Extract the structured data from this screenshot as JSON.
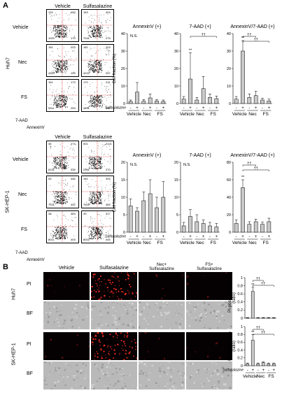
{
  "panelA": {
    "letter": "A",
    "col_headers": [
      "Vehicle",
      "Sulfasalazine"
    ],
    "row_headers": [
      "Vehicle",
      "Nec",
      "FS"
    ],
    "cell_lines": [
      "Huh7",
      "SK-HEP-1"
    ],
    "flow_axis_y": "7-AAD",
    "flow_axis_x": "AnnexinV",
    "huh7_quadrants": [
      [
        [
          "132",
          "400",
          "1020",
          "179"
        ],
        [
          "183",
          "404",
          "7041",
          "275"
        ]
      ],
      [
        [
          "181",
          "203",
          "4320",
          "199"
        ],
        [
          "181",
          "203",
          "4222",
          "257"
        ]
      ],
      [
        [
          "151",
          "173",
          "5311",
          "253"
        ],
        [
          "170",
          "211",
          "4891",
          "242"
        ]
      ]
    ],
    "sk_quadrants": [
      [
        [
          "36",
          "274",
          "8141",
          "335"
        ],
        [
          "501",
          "2121",
          "2961",
          "270"
        ]
      ],
      [
        [
          "53",
          "400",
          "7931",
          "402"
        ],
        [
          "181",
          "393",
          "7602",
          "369"
        ]
      ],
      [
        [
          "28",
          "483",
          "8011",
          "403"
        ],
        [
          "49",
          "317",
          "8002",
          "445"
        ]
      ]
    ]
  },
  "panelB": {
    "letter": "B",
    "col_headers": [
      "Vehicle",
      "Sulfasalazine",
      "Nec+\nSulfasalazine",
      "FS+\nSulfasalazine"
    ],
    "row_headers": [
      "PI",
      "BF",
      "PI",
      "BF"
    ],
    "cell_lines": [
      "Huh7",
      "SK-HEP-1"
    ]
  },
  "chart_data": [
    {
      "type": "bar",
      "panel": "A",
      "cell_line": "Huh7",
      "title": "AnnexinV (+)",
      "ylabel": "Cell fraction (%)",
      "ylim": [
        0,
        40
      ],
      "yticks": [
        0,
        10,
        20,
        30,
        40
      ],
      "values": [
        1.2,
        6.5,
        1.3,
        3.2,
        1.5,
        1.2
      ],
      "errors": [
        0.8,
        5.5,
        1.0,
        2.2,
        0.8,
        0.8
      ],
      "annotations": [
        {
          "text": "N.S."
        }
      ],
      "sulfasalazine": [
        "-",
        "+",
        "-",
        "+",
        "-",
        "+"
      ],
      "groups": [
        "Vehicle",
        "Nec",
        "FS"
      ],
      "sulfasalazine_label": "Sulfasalazine"
    },
    {
      "type": "bar",
      "panel": "A",
      "cell_line": "Huh7",
      "title": "7-AAD (+)",
      "ylim": [
        0,
        40
      ],
      "yticks": [
        0,
        10,
        20,
        30,
        40
      ],
      "values": [
        2.5,
        14.0,
        2.0,
        8.5,
        3.5,
        2.8
      ],
      "errors": [
        1.5,
        15.0,
        1.5,
        7.0,
        2.0,
        1.5
      ],
      "annotations": [
        {
          "text": "**"
        },
        {
          "text": "††"
        }
      ],
      "sulfasalazine": [
        "-",
        "+",
        "-",
        "+",
        "-",
        "+"
      ],
      "groups": [
        "Vehicle",
        "Nec",
        "FS"
      ]
    },
    {
      "type": "bar",
      "panel": "A",
      "cell_line": "Huh7",
      "title": "AnnexinV/7-AAD (+)",
      "ylim": [
        0,
        40
      ],
      "yticks": [
        0,
        10,
        20,
        30,
        40
      ],
      "values": [
        2.5,
        30.0,
        3.5,
        4.5,
        2.0,
        1.5
      ],
      "errors": [
        1.5,
        6.0,
        2.0,
        2.5,
        1.0,
        1.0
      ],
      "annotations": [
        {
          "text": "**"
        },
        {
          "text": "††"
        },
        {
          "text": "††"
        }
      ],
      "sulfasalazine": [
        "-",
        "+",
        "-",
        "+",
        "-",
        "+"
      ],
      "groups": [
        "Vehicle",
        "Nec",
        "FS"
      ]
    },
    {
      "type": "bar",
      "panel": "A",
      "cell_line": "SK-HEP-1",
      "title": "AnnexinV (+)",
      "ylabel": "Cell fraction (%)",
      "ylim": [
        0,
        20
      ],
      "yticks": [
        0,
        5,
        10,
        15,
        20
      ],
      "values": [
        7.5,
        6.0,
        9.0,
        11.0,
        7.0,
        10.0
      ],
      "errors": [
        2.0,
        1.0,
        2.5,
        4.0,
        3.0,
        4.5
      ],
      "annotations": [
        {
          "text": "N.S."
        }
      ],
      "sulfasalazine": [
        "-",
        "+",
        "-",
        "+",
        "-",
        "+"
      ],
      "groups": [
        "Vehicle",
        "Nec",
        "FS"
      ],
      "sulfasalazine_label": "Sulfasalazine"
    },
    {
      "type": "bar",
      "panel": "A",
      "cell_line": "SK-HEP-1",
      "title": "7-AAD (+)",
      "ylim": [
        0,
        20
      ],
      "yticks": [
        0,
        5,
        10,
        15,
        20
      ],
      "values": [
        1.8,
        4.5,
        3.0,
        2.5,
        1.8,
        1.5
      ],
      "errors": [
        1.0,
        2.0,
        2.0,
        1.0,
        1.0,
        1.0
      ],
      "annotations": [
        {
          "text": "N.S."
        }
      ],
      "sulfasalazine": [
        "-",
        "+",
        "-",
        "+",
        "-",
        "+"
      ],
      "groups": [
        "Vehicle",
        "Nec",
        "FS"
      ]
    },
    {
      "type": "bar",
      "panel": "A",
      "cell_line": "SK-HEP-1",
      "title": "AnnexinV/7-AAD (+)",
      "ylim": [
        0,
        80
      ],
      "yticks": [
        0,
        20,
        40,
        60,
        80
      ],
      "values": [
        10.0,
        51.0,
        9.0,
        12.0,
        9.0,
        12.0
      ],
      "errors": [
        4.0,
        9.0,
        3.0,
        3.0,
        2.5,
        4.0
      ],
      "annotations": [
        {
          "text": "**"
        },
        {
          "text": "††"
        },
        {
          "text": "††"
        }
      ],
      "sulfasalazine": [
        "-",
        "+",
        "-",
        "+",
        "-",
        "+"
      ],
      "groups": [
        "Vehicle",
        "Nec",
        "FS"
      ]
    },
    {
      "type": "bar",
      "panel": "B",
      "cell_line": "Huh7",
      "ylabel": "PI-positive cells\n(ratio)",
      "ylim": [
        0,
        1.0
      ],
      "yticks": [
        0,
        0.2,
        0.4,
        0.6,
        0.8,
        1.0
      ],
      "values": [
        0.01,
        0.66,
        0.01,
        0.01,
        0.01,
        0.01
      ],
      "errors": [
        0.005,
        0.1,
        0.005,
        0.005,
        0.005,
        0.005
      ],
      "annotations": [
        {
          "text": "**"
        },
        {
          "text": "††"
        },
        {
          "text": "††"
        }
      ]
    },
    {
      "type": "bar",
      "panel": "B",
      "cell_line": "SK-HEP-1",
      "ylabel": "PI-positive cells\n(ratio)",
      "ylim": [
        0,
        1.0
      ],
      "yticks": [
        0,
        0.2,
        0.4,
        0.6,
        0.8,
        1.0
      ],
      "values": [
        0.05,
        0.65,
        0.05,
        0.08,
        0.05,
        0.05
      ],
      "errors": [
        0.02,
        0.14,
        0.02,
        0.02,
        0.02,
        0.02
      ],
      "annotations": [
        {
          "text": "**"
        },
        {
          "text": "††"
        },
        {
          "text": "††"
        }
      ],
      "sulfasalazine": [
        "-",
        "+",
        "-",
        "+",
        "-",
        "+"
      ],
      "groups": [
        "Vehicle",
        "Nec",
        "FS"
      ],
      "sulfasalazine_label": "Sulfasalazine"
    }
  ]
}
